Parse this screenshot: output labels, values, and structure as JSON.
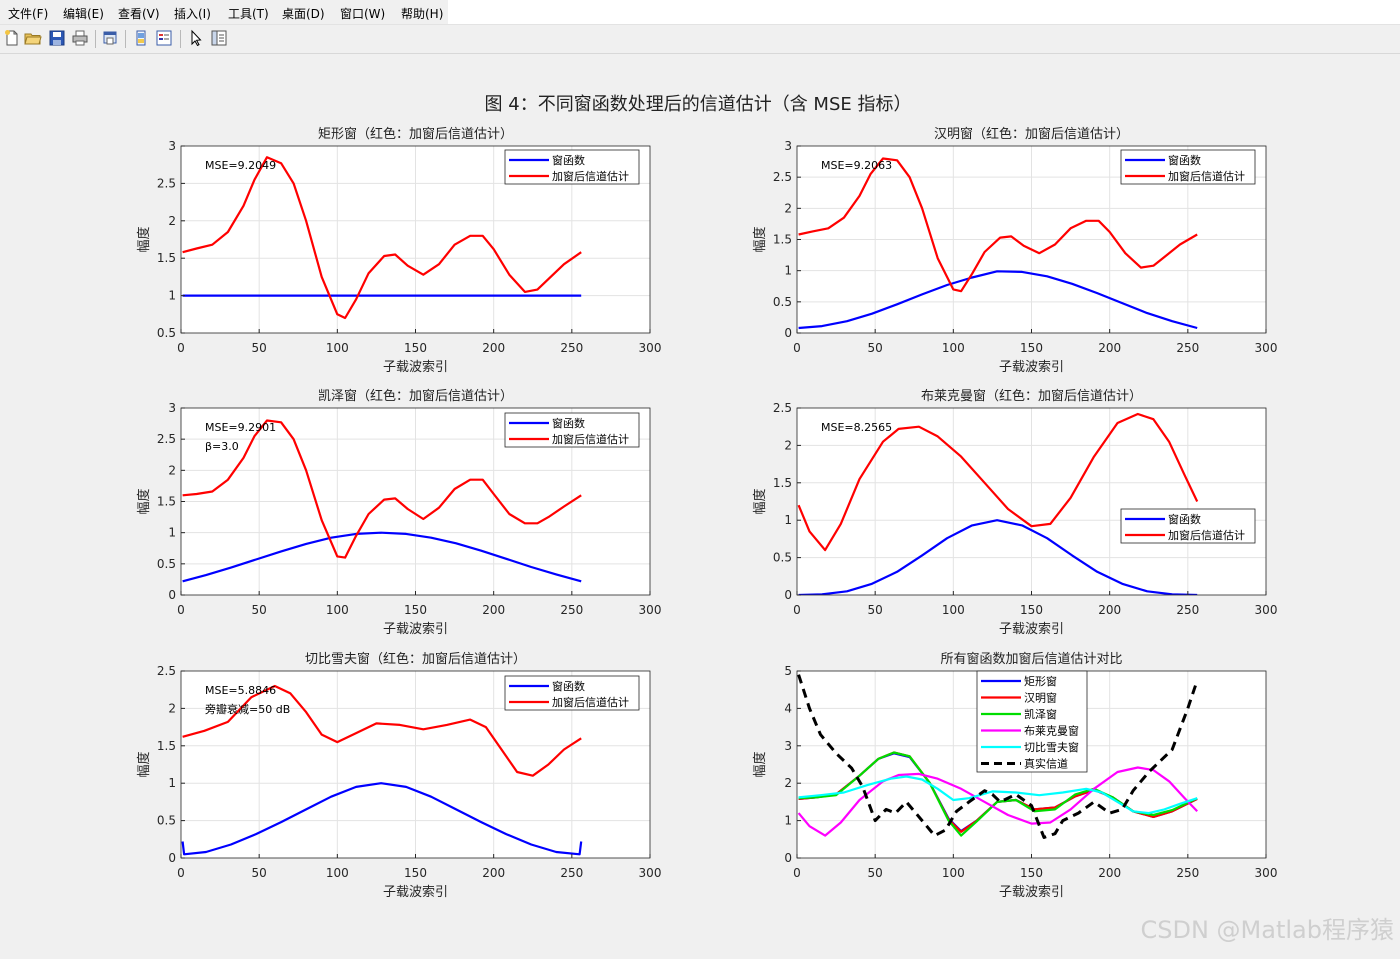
{
  "menu": [
    "文件(F)",
    "编辑(E)",
    "查看(V)",
    "插入(I)",
    "工具(T)",
    "桌面(D)",
    "窗口(W)",
    "帮助(H)"
  ],
  "toolbar_icons": [
    "new-file-icon",
    "open-folder-icon",
    "save-icon",
    "print-icon",
    "print-preview-icon",
    "link-plot-icon",
    "insert-legend-icon",
    "pointer-icon",
    "property-editor-icon"
  ],
  "figure": {
    "suptitle": "图 4：不同窗函数处理后的信道估计（含 MSE 指标）",
    "xlabel": "子载波索引",
    "ylabel": "幅度"
  },
  "watermark": "CSDN @Matlab程序猿",
  "colors": {
    "window": "#0000ff",
    "estimate": "#ff0000",
    "background": "#f0f0f0"
  },
  "chart_data": [
    {
      "type": "line",
      "title": "矩形窗（红色：加窗后信道估计）",
      "xlabel": "子载波索引",
      "ylabel": "幅度",
      "xlim": [
        0,
        300
      ],
      "ylim": [
        0.5,
        3
      ],
      "xticks": [
        0,
        50,
        100,
        150,
        200,
        250,
        300
      ],
      "yticks": [
        0.5,
        1,
        1.5,
        2,
        2.5,
        3
      ],
      "grid": true,
      "legend_position": "top-right",
      "annotations": [
        "MSE=9.2049"
      ],
      "series": [
        {
          "name": "窗函数",
          "color": "#0000ff",
          "x": [
            1,
            256
          ],
          "y": [
            1,
            1
          ]
        },
        {
          "name": "加窗后信道估计",
          "color": "#ff0000",
          "x": [
            1,
            10,
            20,
            30,
            40,
            47,
            55,
            64,
            72,
            80,
            90,
            100,
            105,
            112,
            120,
            130,
            137,
            145,
            155,
            165,
            175,
            185,
            193,
            200,
            210,
            220,
            228,
            235,
            245,
            256
          ],
          "y": [
            1.58,
            1.63,
            1.68,
            1.85,
            2.2,
            2.55,
            2.85,
            2.77,
            2.5,
            2.0,
            1.25,
            0.75,
            0.7,
            0.95,
            1.3,
            1.53,
            1.55,
            1.4,
            1.28,
            1.42,
            1.68,
            1.8,
            1.8,
            1.62,
            1.28,
            1.05,
            1.08,
            1.22,
            1.42,
            1.58
          ]
        }
      ]
    },
    {
      "type": "line",
      "title": "汉明窗（红色：加窗后信道估计）",
      "xlabel": "子载波索引",
      "ylabel": "幅度",
      "xlim": [
        0,
        300
      ],
      "ylim": [
        0,
        3
      ],
      "xticks": [
        0,
        50,
        100,
        150,
        200,
        250,
        300
      ],
      "yticks": [
        0,
        0.5,
        1,
        1.5,
        2,
        2.5,
        3
      ],
      "grid": true,
      "legend_position": "top-right",
      "annotations": [
        "MSE=9.2063"
      ],
      "series": [
        {
          "name": "窗函数",
          "color": "#0000ff",
          "x": [
            1,
            16,
            32,
            48,
            64,
            80,
            96,
            112,
            128,
            144,
            160,
            176,
            192,
            208,
            224,
            240,
            256
          ],
          "y": [
            0.08,
            0.11,
            0.19,
            0.31,
            0.46,
            0.62,
            0.77,
            0.89,
            0.99,
            0.98,
            0.91,
            0.79,
            0.64,
            0.48,
            0.32,
            0.19,
            0.08
          ]
        },
        {
          "name": "加窗后信道估计",
          "color": "#ff0000",
          "x": [
            1,
            10,
            20,
            30,
            40,
            47,
            55,
            64,
            72,
            80,
            90,
            100,
            105,
            112,
            120,
            130,
            137,
            145,
            155,
            165,
            175,
            185,
            193,
            200,
            210,
            220,
            228,
            235,
            245,
            256
          ],
          "y": [
            1.58,
            1.63,
            1.68,
            1.85,
            2.2,
            2.55,
            2.8,
            2.77,
            2.5,
            2.0,
            1.2,
            0.7,
            0.67,
            0.95,
            1.3,
            1.53,
            1.55,
            1.4,
            1.28,
            1.42,
            1.68,
            1.8,
            1.8,
            1.62,
            1.28,
            1.05,
            1.08,
            1.22,
            1.42,
            1.58
          ]
        }
      ]
    },
    {
      "type": "line",
      "title": "凯泽窗（红色：加窗后信道估计）",
      "xlabel": "子载波索引",
      "ylabel": "幅度",
      "xlim": [
        0,
        300
      ],
      "ylim": [
        0,
        3
      ],
      "xticks": [
        0,
        50,
        100,
        150,
        200,
        250,
        300
      ],
      "yticks": [
        0,
        0.5,
        1,
        1.5,
        2,
        2.5,
        3
      ],
      "grid": true,
      "legend_position": "top-right",
      "annotations": [
        "MSE=9.2901",
        "β=3.0"
      ],
      "series": [
        {
          "name": "窗函数",
          "color": "#0000ff",
          "x": [
            1,
            16,
            32,
            48,
            64,
            80,
            96,
            112,
            128,
            144,
            160,
            176,
            192,
            208,
            224,
            240,
            256
          ],
          "y": [
            0.22,
            0.32,
            0.44,
            0.57,
            0.7,
            0.82,
            0.92,
            0.98,
            1.0,
            0.98,
            0.92,
            0.83,
            0.71,
            0.58,
            0.45,
            0.33,
            0.22
          ]
        },
        {
          "name": "加窗后信道估计",
          "color": "#ff0000",
          "x": [
            1,
            10,
            20,
            30,
            40,
            47,
            55,
            64,
            72,
            80,
            90,
            100,
            105,
            112,
            120,
            130,
            137,
            145,
            155,
            165,
            175,
            185,
            193,
            200,
            210,
            220,
            228,
            235,
            245,
            256
          ],
          "y": [
            1.6,
            1.62,
            1.66,
            1.85,
            2.2,
            2.55,
            2.8,
            2.77,
            2.5,
            2.0,
            1.2,
            0.62,
            0.6,
            0.95,
            1.3,
            1.53,
            1.55,
            1.38,
            1.22,
            1.4,
            1.7,
            1.85,
            1.85,
            1.62,
            1.3,
            1.15,
            1.15,
            1.25,
            1.42,
            1.6
          ]
        }
      ]
    },
    {
      "type": "line",
      "title": "布莱克曼窗（红色：加窗后信道估计）",
      "xlabel": "子载波索引",
      "ylabel": "幅度",
      "xlim": [
        0,
        300
      ],
      "ylim": [
        0,
        2.5
      ],
      "xticks": [
        0,
        50,
        100,
        150,
        200,
        250,
        300
      ],
      "yticks": [
        0,
        0.5,
        1,
        1.5,
        2,
        2.5
      ],
      "grid": true,
      "legend_position": "right",
      "annotations": [
        "MSE=8.2565"
      ],
      "series": [
        {
          "name": "窗函数",
          "color": "#0000ff",
          "x": [
            1,
            16,
            32,
            48,
            64,
            80,
            96,
            112,
            128,
            144,
            160,
            176,
            192,
            208,
            224,
            240,
            256
          ],
          "y": [
            0.0,
            0.01,
            0.05,
            0.15,
            0.31,
            0.53,
            0.76,
            0.93,
            1.0,
            0.93,
            0.76,
            0.53,
            0.31,
            0.15,
            0.05,
            0.01,
            0.0
          ]
        },
        {
          "name": "加窗后信道估计",
          "color": "#ff0000",
          "x": [
            1,
            8,
            18,
            28,
            40,
            55,
            65,
            78,
            90,
            105,
            120,
            135,
            150,
            162,
            175,
            190,
            205,
            218,
            228,
            238,
            248,
            256
          ],
          "y": [
            1.2,
            0.85,
            0.6,
            0.95,
            1.55,
            2.05,
            2.22,
            2.25,
            2.12,
            1.85,
            1.5,
            1.15,
            0.92,
            0.95,
            1.3,
            1.85,
            2.3,
            2.42,
            2.35,
            2.05,
            1.6,
            1.25
          ]
        }
      ]
    },
    {
      "type": "line",
      "title": "切比雪夫窗（红色：加窗后信道估计）",
      "xlabel": "子载波索引",
      "ylabel": "幅度",
      "xlim": [
        0,
        300
      ],
      "ylim": [
        0,
        2.5
      ],
      "xticks": [
        0,
        50,
        100,
        150,
        200,
        250,
        300
      ],
      "yticks": [
        0,
        0.5,
        1,
        1.5,
        2,
        2.5
      ],
      "grid": true,
      "legend_position": "top-right",
      "annotations": [
        "MSE=5.8846",
        "旁瓣衰减=50 dB"
      ],
      "series": [
        {
          "name": "窗函数",
          "color": "#0000ff",
          "x": [
            1,
            2,
            16,
            32,
            48,
            64,
            80,
            96,
            112,
            128,
            144,
            160,
            176,
            192,
            208,
            224,
            240,
            255,
            256
          ],
          "y": [
            0.22,
            0.05,
            0.08,
            0.18,
            0.32,
            0.48,
            0.65,
            0.82,
            0.95,
            1.0,
            0.95,
            0.82,
            0.65,
            0.48,
            0.32,
            0.18,
            0.08,
            0.05,
            0.22
          ]
        },
        {
          "name": "加窗后信道估计",
          "color": "#ff0000",
          "x": [
            1,
            15,
            30,
            45,
            60,
            70,
            80,
            90,
            100,
            110,
            125,
            140,
            155,
            170,
            185,
            195,
            205,
            215,
            225,
            235,
            245,
            256
          ],
          "y": [
            1.62,
            1.7,
            1.82,
            2.15,
            2.3,
            2.2,
            1.95,
            1.65,
            1.55,
            1.65,
            1.8,
            1.78,
            1.72,
            1.78,
            1.85,
            1.75,
            1.45,
            1.15,
            1.1,
            1.25,
            1.45,
            1.6
          ]
        }
      ]
    },
    {
      "type": "line",
      "title": "所有窗函数加窗后信道估计对比",
      "xlabel": "子载波索引",
      "ylabel": "幅度",
      "xlim": [
        0,
        300
      ],
      "ylim": [
        0,
        5
      ],
      "xticks": [
        0,
        50,
        100,
        150,
        200,
        250,
        300
      ],
      "yticks": [
        0,
        1,
        2,
        3,
        4,
        5
      ],
      "grid": true,
      "legend_position": "top-center",
      "series": [
        {
          "name": "矩形窗",
          "color": "#0000ff",
          "dash": false,
          "x": [
            1,
            12,
            25,
            40,
            52,
            62,
            72,
            85,
            97,
            105,
            115,
            128,
            140,
            152,
            165,
            178,
            190,
            202,
            215,
            228,
            240,
            256
          ],
          "y": [
            1.58,
            1.62,
            1.7,
            2.2,
            2.65,
            2.8,
            2.7,
            2.0,
            1.05,
            0.72,
            1.0,
            1.5,
            1.55,
            1.3,
            1.35,
            1.65,
            1.82,
            1.62,
            1.25,
            1.1,
            1.25,
            1.58
          ]
        },
        {
          "name": "汉明窗",
          "color": "#ff0000",
          "dash": false,
          "x": [
            1,
            12,
            25,
            40,
            52,
            62,
            72,
            85,
            97,
            105,
            115,
            128,
            140,
            152,
            165,
            178,
            190,
            202,
            215,
            228,
            240,
            256
          ],
          "y": [
            1.58,
            1.62,
            1.7,
            2.2,
            2.65,
            2.82,
            2.72,
            2.0,
            1.03,
            0.7,
            1.0,
            1.5,
            1.55,
            1.3,
            1.35,
            1.65,
            1.82,
            1.62,
            1.25,
            1.1,
            1.25,
            1.58
          ]
        },
        {
          "name": "凯泽窗",
          "color": "#00dd00",
          "dash": false,
          "x": [
            1,
            12,
            25,
            40,
            52,
            62,
            72,
            85,
            97,
            105,
            115,
            128,
            140,
            152,
            165,
            178,
            190,
            202,
            215,
            228,
            240,
            256
          ],
          "y": [
            1.6,
            1.62,
            1.68,
            2.2,
            2.65,
            2.82,
            2.72,
            2.0,
            1.0,
            0.6,
            0.98,
            1.5,
            1.55,
            1.25,
            1.3,
            1.7,
            1.85,
            1.62,
            1.25,
            1.15,
            1.28,
            1.6
          ]
        },
        {
          "name": "布莱克曼窗",
          "color": "#ff00ff",
          "dash": false,
          "x": [
            1,
            8,
            18,
            28,
            40,
            55,
            65,
            78,
            90,
            105,
            120,
            135,
            150,
            162,
            175,
            190,
            205,
            218,
            228,
            238,
            248,
            256
          ],
          "y": [
            1.2,
            0.85,
            0.6,
            0.95,
            1.55,
            2.05,
            2.22,
            2.25,
            2.12,
            1.85,
            1.5,
            1.15,
            0.92,
            0.95,
            1.3,
            1.85,
            2.3,
            2.42,
            2.35,
            2.05,
            1.6,
            1.25
          ]
        },
        {
          "name": "切比雪夫窗",
          "color": "#00ffff",
          "dash": false,
          "x": [
            1,
            15,
            30,
            45,
            60,
            70,
            80,
            90,
            100,
            110,
            125,
            140,
            155,
            170,
            185,
            195,
            205,
            215,
            225,
            235,
            245,
            256
          ],
          "y": [
            1.62,
            1.68,
            1.75,
            1.95,
            2.12,
            2.18,
            2.1,
            1.85,
            1.55,
            1.6,
            1.78,
            1.75,
            1.68,
            1.75,
            1.85,
            1.75,
            1.5,
            1.25,
            1.2,
            1.3,
            1.45,
            1.6
          ]
        },
        {
          "name": "真实信道",
          "color": "#000000",
          "dash": true,
          "x": [
            1,
            8,
            15,
            25,
            35,
            42,
            50,
            57,
            63,
            70,
            80,
            88,
            95,
            102,
            110,
            120,
            125,
            130,
            140,
            150,
            158,
            165,
            170,
            180,
            190,
            200,
            208,
            215,
            225,
            240,
            250,
            256
          ],
          "y": [
            4.9,
            4.0,
            3.3,
            2.8,
            2.4,
            1.9,
            1.0,
            1.3,
            1.2,
            1.5,
            1.0,
            0.6,
            0.75,
            1.25,
            1.5,
            1.8,
            1.7,
            1.5,
            1.7,
            1.4,
            0.55,
            0.65,
            1.0,
            1.2,
            1.5,
            1.2,
            1.3,
            1.8,
            2.3,
            2.9,
            4.0,
            4.75
          ]
        }
      ]
    }
  ]
}
